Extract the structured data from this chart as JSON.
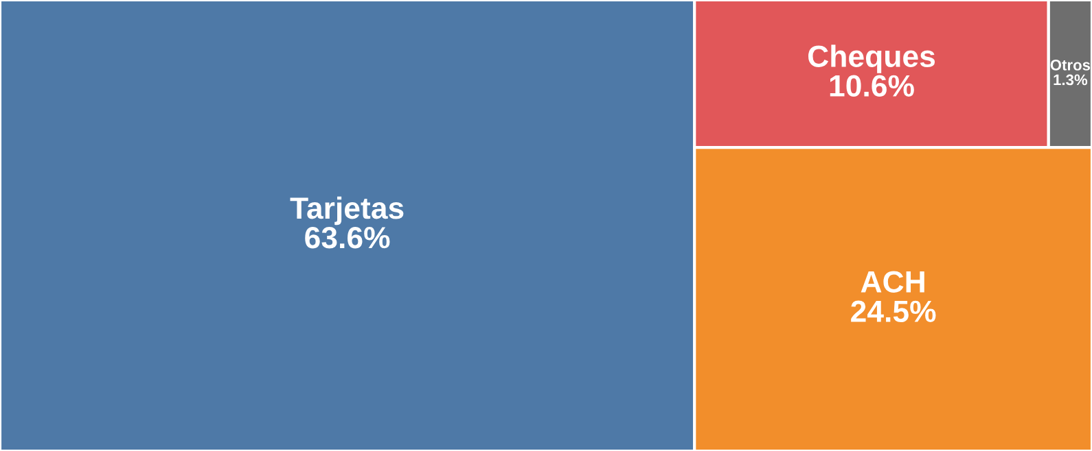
{
  "chart_data": {
    "type": "other",
    "categories": [
      "Tarjetas",
      "Cheques",
      "Otros",
      "ACH"
    ],
    "values": [
      63.6,
      10.6,
      1.3,
      24.5
    ],
    "value_labels": [
      "63.6%",
      "10.6%",
      "1.3%",
      "24.5%"
    ],
    "colors": [
      "#4e79a7",
      "#e15759",
      "#6e6e6e",
      "#f28e2b"
    ]
  }
}
